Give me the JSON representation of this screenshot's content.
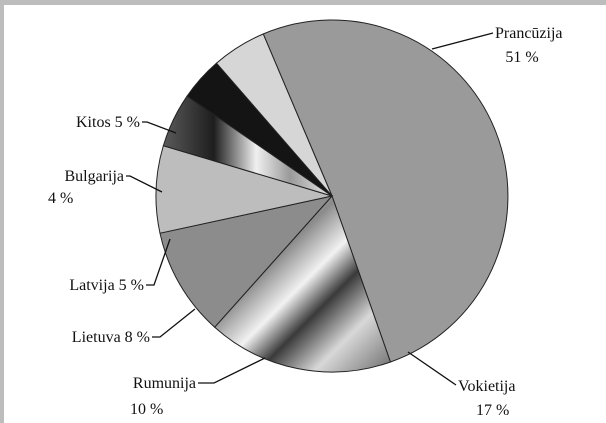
{
  "chart_data": {
    "type": "pie",
    "title": "",
    "slices": [
      {
        "label": "Prancūzija",
        "pct_text": "51 %",
        "value": 51,
        "fill": "#9a9a9a"
      },
      {
        "label": "Vokietija",
        "pct_text": "17 %",
        "value": 17,
        "fill": "gradient"
      },
      {
        "label": "Rumunija",
        "pct_text": "10 %",
        "value": 10,
        "fill": "#8c8c8c"
      },
      {
        "label": "Lietuva 8 %",
        "pct_text": "",
        "value": 8,
        "fill": "#bdbdbd"
      },
      {
        "label": "Latvija 5 %",
        "pct_text": "",
        "value": 5,
        "fill": "gradient"
      },
      {
        "label": "Bulgarija",
        "pct_text": "4 %",
        "value": 4,
        "fill": "#141414"
      },
      {
        "label": "Kitos 5 %",
        "pct_text": "",
        "value": 5,
        "fill": "#d6d6d6"
      }
    ]
  }
}
